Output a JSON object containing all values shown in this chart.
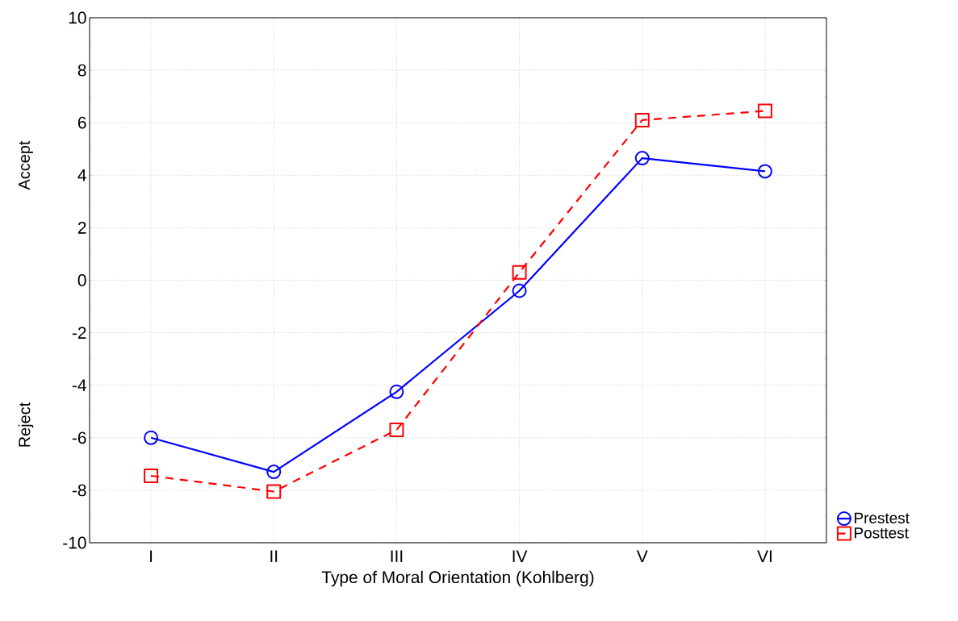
{
  "chart_data": {
    "type": "line",
    "xlabel": "Type of Moral Orientation (Kohlberg)",
    "categories": [
      "I",
      "II",
      "III",
      "IV",
      "V",
      "VI"
    ],
    "series": [
      {
        "name": "Prestest",
        "color": "#0000ff",
        "marker": "circle",
        "line_style": "solid",
        "values": [
          -6.0,
          -7.3,
          -4.25,
          -0.4,
          4.65,
          4.15
        ]
      },
      {
        "name": "Posttest",
        "color": "#ff0000",
        "marker": "square",
        "line_style": "dashed",
        "values": [
          -7.45,
          -8.05,
          -5.7,
          0.3,
          6.1,
          6.45
        ]
      }
    ],
    "ylim": [
      -10,
      10
    ],
    "yticks": [
      -10,
      -8,
      -6,
      -4,
      -2,
      0,
      2,
      4,
      6,
      8,
      10
    ],
    "grid": true,
    "legend": "bottom right",
    "annotations": [
      "Accept",
      "Reject"
    ]
  }
}
